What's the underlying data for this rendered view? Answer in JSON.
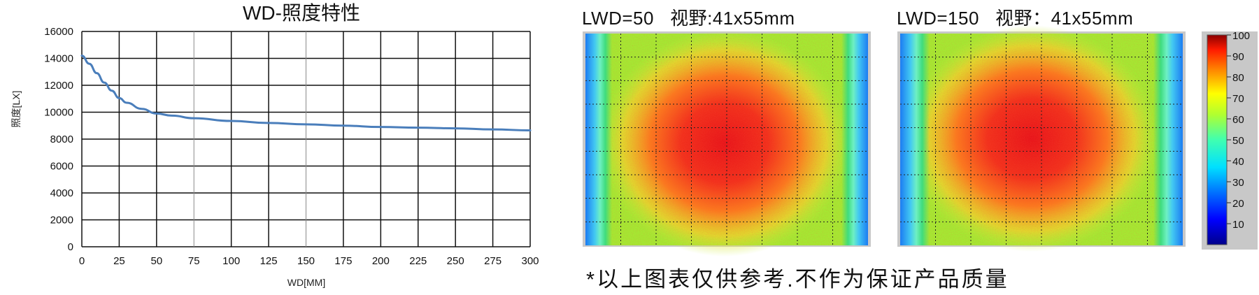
{
  "chart_data": [
    {
      "type": "line",
      "title": "WD-照度特性",
      "xlabel": "WD[MM]",
      "ylabel": "照度[LX]",
      "xlim": [
        0,
        300
      ],
      "ylim": [
        0,
        16000
      ],
      "x_ticks": [
        0,
        25,
        50,
        75,
        100,
        125,
        150,
        175,
        200,
        225,
        250,
        275,
        300
      ],
      "y_ticks": [
        0,
        2000,
        4000,
        6000,
        8000,
        10000,
        12000,
        14000,
        16000
      ],
      "grid": true,
      "series": [
        {
          "color": "#4a7ebb",
          "x": [
            0,
            5,
            10,
            15,
            20,
            25,
            30,
            40,
            50,
            60,
            75,
            100,
            125,
            150,
            175,
            200,
            225,
            250,
            275,
            300
          ],
          "y": [
            14200,
            13600,
            12900,
            12200,
            11600,
            11050,
            10700,
            10250,
            9900,
            9750,
            9550,
            9350,
            9200,
            9100,
            9000,
            8900,
            8850,
            8800,
            8720,
            8650
          ]
        }
      ]
    },
    {
      "type": "heatmap",
      "title": "LWD=50   视野:41x55mm",
      "notes_color_scale": "shared colorbar"
    },
    {
      "type": "heatmap",
      "title": "LWD=150   视野：41x55mm"
    },
    {
      "type": "colorbar",
      "ticks": [
        10,
        20,
        30,
        40,
        50,
        60,
        70,
        80,
        90,
        100
      ],
      "range": [
        0,
        100
      ],
      "colors": [
        "#00008b",
        "#0000ff",
        "#0080ff",
        "#00ffff",
        "#00ff80",
        "#80ff00",
        "#ffff00",
        "#ff8000",
        "#ff0000",
        "#8b0000"
      ]
    }
  ],
  "footer": {
    "disclaimer": "*以上图表仅供参考.不作为保证产品质量"
  }
}
